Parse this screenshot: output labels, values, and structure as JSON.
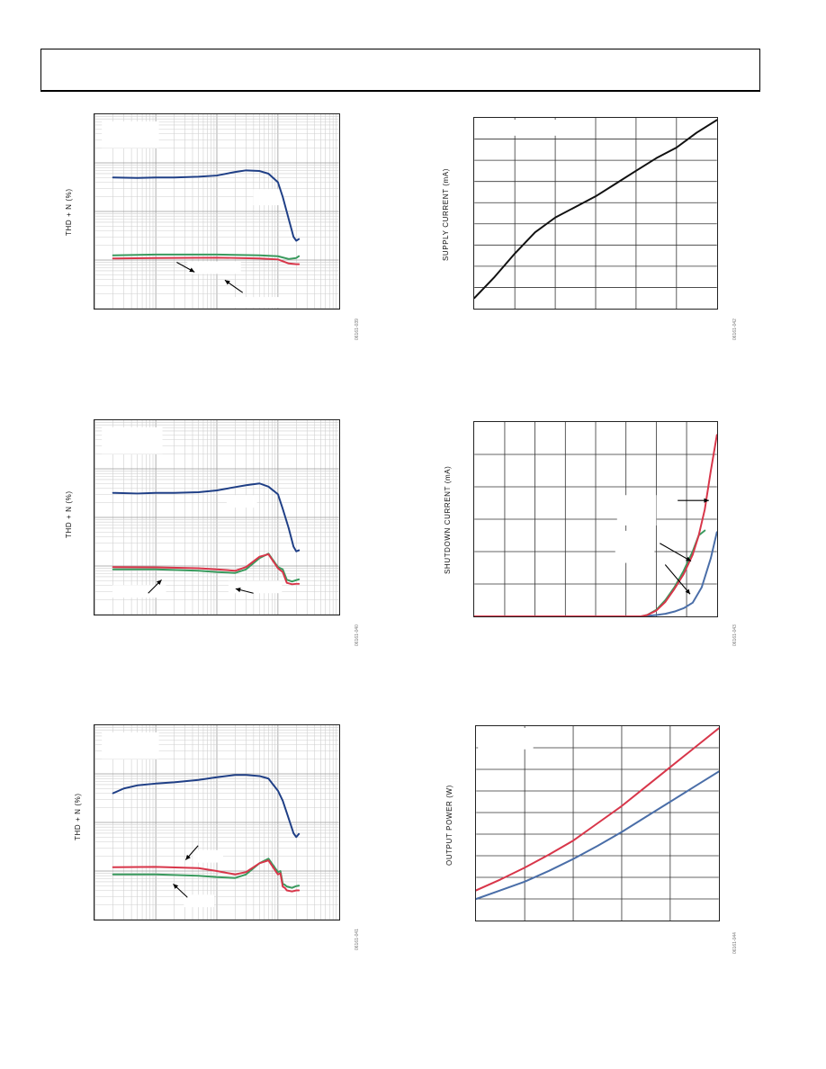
{
  "colors": {
    "blue": "#1f3f86",
    "red": "#d8364a",
    "green": "#3a9a5e",
    "black": "#111111",
    "steel": "#4a6ea8"
  },
  "figures": [
    {
      "ylabel": "THD + N (%)",
      "code": "06161-039"
    },
    {
      "ylabel": "SUPPLY CURRENT (mA)",
      "code": "06161-042"
    },
    {
      "ylabel": "THD + N (%)",
      "code": "06161-040"
    },
    {
      "ylabel": "SHUTDOWN CURRENT (mA)",
      "code": "06161-043"
    },
    {
      "ylabel": "THD + N (%)",
      "code": "06161-041"
    },
    {
      "ylabel": "OUTPUT POWER (W)",
      "code": "06161-044"
    }
  ],
  "chart_data": [
    {
      "type": "line",
      "xscale": "log",
      "yscale": "log",
      "xlim": [
        10,
        100000
      ],
      "ylim": [
        0.001,
        10
      ],
      "series": [
        {
          "color": "blue",
          "x": [
            20,
            50,
            100,
            200,
            500,
            1000,
            2000,
            3000,
            5000,
            7000,
            10000,
            12000,
            15000,
            18000,
            20000,
            22000
          ],
          "y": [
            0.5,
            0.49,
            0.5,
            0.5,
            0.52,
            0.55,
            0.65,
            0.7,
            0.68,
            0.6,
            0.4,
            0.2,
            0.07,
            0.03,
            0.025,
            0.027
          ]
        },
        {
          "color": "green",
          "x": [
            20,
            100,
            1000,
            5000,
            10000,
            15000,
            20000,
            22000
          ],
          "y": [
            0.0125,
            0.013,
            0.013,
            0.0125,
            0.012,
            0.0105,
            0.011,
            0.012
          ]
        },
        {
          "color": "red",
          "x": [
            20,
            100,
            1000,
            5000,
            10000,
            15000,
            20000,
            22000
          ],
          "y": [
            0.0108,
            0.011,
            0.0112,
            0.0108,
            0.0103,
            0.0085,
            0.0082,
            0.0082
          ]
        }
      ]
    },
    {
      "type": "line",
      "xlim": [
        0,
        6
      ],
      "ylim": [
        0,
        9
      ],
      "series": [
        {
          "color": "black",
          "x": [
            0,
            0.5,
            1,
            1.5,
            2,
            2.5,
            3,
            3.5,
            4,
            4.5,
            5,
            5.5,
            6
          ],
          "y": [
            0.5,
            1.5,
            2.6,
            3.6,
            4.3,
            4.8,
            5.3,
            5.9,
            6.5,
            7.1,
            7.6,
            8.3,
            8.9
          ]
        }
      ]
    },
    {
      "type": "line",
      "xscale": "log",
      "yscale": "log",
      "xlim": [
        10,
        100000
      ],
      "ylim": [
        0.001,
        10
      ],
      "series": [
        {
          "color": "blue",
          "x": [
            20,
            50,
            100,
            200,
            500,
            1000,
            2000,
            3000,
            5000,
            7000,
            10000,
            12000,
            15000,
            18000,
            20000,
            22000
          ],
          "y": [
            0.32,
            0.31,
            0.32,
            0.32,
            0.33,
            0.36,
            0.42,
            0.46,
            0.5,
            0.43,
            0.3,
            0.15,
            0.06,
            0.025,
            0.02,
            0.021
          ]
        },
        {
          "color": "green",
          "x": [
            20,
            100,
            500,
            1000,
            2000,
            3000,
            5000,
            7000,
            10000,
            12000,
            14000,
            17000,
            20000,
            22000
          ],
          "y": [
            0.0085,
            0.0085,
            0.008,
            0.0075,
            0.0072,
            0.0085,
            0.0145,
            0.018,
            0.0095,
            0.0085,
            0.0052,
            0.0048,
            0.0051,
            0.0053
          ]
        },
        {
          "color": "red",
          "x": [
            20,
            100,
            500,
            1000,
            2000,
            3000,
            5000,
            7000,
            10000,
            12000,
            14000,
            17000,
            20000,
            22000
          ],
          "y": [
            0.0095,
            0.0094,
            0.009,
            0.0085,
            0.008,
            0.0095,
            0.0155,
            0.0175,
            0.009,
            0.0075,
            0.0045,
            0.0042,
            0.0043,
            0.0043
          ]
        }
      ]
    },
    {
      "type": "line",
      "xlim": [
        0,
        8
      ],
      "ylim": [
        0,
        6
      ],
      "series": [
        {
          "color": "steel",
          "x": [
            0,
            5.5,
            6,
            6.3,
            6.6,
            6.9,
            7.2,
            7.5,
            7.8,
            8
          ],
          "y": [
            0,
            0,
            0.04,
            0.08,
            0.15,
            0.25,
            0.42,
            0.9,
            1.8,
            2.6
          ]
        },
        {
          "color": "green",
          "x": [
            0,
            5.5,
            5.7,
            6,
            6.3,
            6.6,
            6.9,
            7.2,
            7.4,
            7.6
          ],
          "y": [
            0,
            0,
            0.04,
            0.2,
            0.5,
            0.9,
            1.4,
            2.0,
            2.5,
            2.65
          ]
        },
        {
          "color": "red",
          "x": [
            0,
            5.5,
            5.7,
            6,
            6.3,
            6.6,
            6.9,
            7.2,
            7.4,
            7.6,
            7.8,
            8
          ],
          "y": [
            0,
            0,
            0.04,
            0.18,
            0.45,
            0.85,
            1.3,
            1.9,
            2.5,
            3.3,
            4.5,
            5.6
          ]
        }
      ]
    },
    {
      "type": "line",
      "xscale": "log",
      "yscale": "log",
      "xlim": [
        10,
        100000
      ],
      "ylim": [
        0.001,
        10
      ],
      "series": [
        {
          "color": "blue",
          "x": [
            20,
            30,
            50,
            100,
            200,
            500,
            1000,
            2000,
            3000,
            5000,
            7000,
            10000,
            12000,
            15000,
            18000,
            20000,
            22000
          ],
          "y": [
            0.4,
            0.5,
            0.58,
            0.63,
            0.67,
            0.75,
            0.85,
            0.95,
            0.95,
            0.9,
            0.8,
            0.45,
            0.28,
            0.12,
            0.06,
            0.05,
            0.058
          ]
        },
        {
          "color": "green",
          "x": [
            20,
            100,
            500,
            1000,
            2000,
            3000,
            5000,
            7000,
            10000,
            11000,
            12000,
            13000,
            14000,
            17000,
            20000,
            22000
          ],
          "y": [
            0.0085,
            0.0085,
            0.008,
            0.0075,
            0.0072,
            0.0085,
            0.0145,
            0.018,
            0.0095,
            0.01,
            0.0055,
            0.0052,
            0.0048,
            0.0045,
            0.0049,
            0.005
          ]
        },
        {
          "color": "red",
          "x": [
            20,
            100,
            500,
            1000,
            2000,
            3000,
            5000,
            7000,
            10000,
            11000,
            12000,
            13000,
            14000,
            17000,
            20000,
            22000
          ],
          "y": [
            0.012,
            0.0122,
            0.0115,
            0.01,
            0.0085,
            0.0095,
            0.0145,
            0.0165,
            0.0085,
            0.009,
            0.0048,
            0.0045,
            0.004,
            0.0038,
            0.004,
            0.004
          ]
        }
      ]
    },
    {
      "type": "line",
      "xlim": [
        0,
        5
      ],
      "ylim": [
        0,
        9
      ],
      "series": [
        {
          "color": "red",
          "x": [
            0,
            0.5,
            1,
            1.5,
            2,
            2.5,
            3,
            3.5,
            4,
            4.5,
            5
          ],
          "y": [
            1.4,
            1.9,
            2.45,
            3.05,
            3.7,
            4.5,
            5.3,
            6.2,
            7.1,
            8.0,
            8.9
          ]
        },
        {
          "color": "steel",
          "x": [
            0,
            0.5,
            1,
            1.5,
            2,
            2.5,
            3,
            3.5,
            4,
            4.5,
            5
          ],
          "y": [
            1.0,
            1.4,
            1.8,
            2.3,
            2.85,
            3.45,
            4.1,
            4.8,
            5.5,
            6.2,
            6.9
          ]
        }
      ]
    }
  ]
}
